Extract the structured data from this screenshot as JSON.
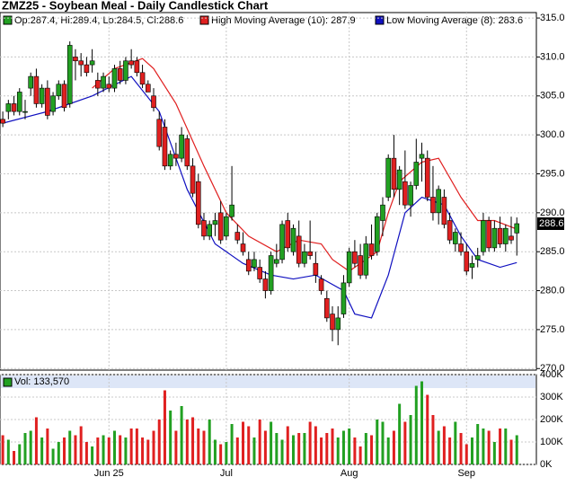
{
  "chart_data": {
    "type": "candlestick",
    "title": "ZMZ25 - Soybean Meal - Daily Candlestick Chart",
    "ohlc_label": "Op:287.4, Hi:289.4, Lo:284.5, Cl:288.6",
    "last_price_label": "288.6",
    "up_color": "#22a022",
    "down_color": "#e02020",
    "ylim": [
      269.8,
      315.7
    ],
    "yticks": [
      {
        "value": 270,
        "label": "270.0"
      },
      {
        "value": 275,
        "label": "275.0"
      },
      {
        "value": 280,
        "label": "280.0"
      },
      {
        "value": 285,
        "label": "285.0"
      },
      {
        "value": 290,
        "label": "290.0"
      },
      {
        "value": 295,
        "label": "295.0"
      },
      {
        "value": 300,
        "label": "300.0"
      },
      {
        "value": 305,
        "label": "305.0"
      },
      {
        "value": 310,
        "label": "310.0"
      },
      {
        "value": 315,
        "label": "315.0"
      }
    ],
    "xlim": [
      -0.5,
      95.5
    ],
    "xticks": [
      {
        "value": 19,
        "label": "Jun 25"
      },
      {
        "value": 40,
        "label": "Jul"
      },
      {
        "value": 62,
        "label": "Aug"
      },
      {
        "value": 83,
        "label": "Sep"
      }
    ],
    "grid": true,
    "candles": [
      [
        302,
        303,
        301,
        301.5
      ],
      [
        303,
        304.5,
        302,
        304
      ],
      [
        304,
        305,
        302.5,
        303
      ],
      [
        303,
        306,
        302.5,
        305.5
      ],
      [
        303,
        304.5,
        302,
        303
      ],
      [
        306,
        308,
        305,
        307.5
      ],
      [
        307.5,
        308.5,
        303.5,
        304
      ],
      [
        304,
        306.5,
        303.5,
        306
      ],
      [
        306,
        307,
        302,
        302.5
      ],
      [
        303,
        305.5,
        302.5,
        305
      ],
      [
        305,
        307,
        304.5,
        306.5
      ],
      [
        306.5,
        307,
        303,
        303.5
      ],
      [
        304,
        312,
        303.5,
        311.5
      ],
      [
        310,
        311,
        307,
        309.5
      ],
      [
        309.5,
        310.5,
        307.5,
        309
      ],
      [
        309,
        310,
        307.5,
        308
      ],
      [
        309,
        311,
        308,
        309.5
      ],
      [
        307,
        308,
        305,
        306
      ],
      [
        306,
        308,
        305.5,
        307.5
      ],
      [
        306.5,
        307.5,
        305.5,
        306
      ],
      [
        306,
        309,
        305.5,
        308.5
      ],
      [
        308.5,
        309.5,
        306.5,
        307
      ],
      [
        307,
        310,
        306.5,
        309.5
      ],
      [
        309.5,
        311,
        308.5,
        309
      ],
      [
        309.5,
        310,
        307.5,
        308
      ],
      [
        308,
        309,
        306,
        306.5
      ],
      [
        306.5,
        307,
        305.5,
        305.5
      ],
      [
        305,
        306,
        303,
        303.5
      ],
      [
        302,
        303,
        298,
        298.5
      ],
      [
        301,
        302,
        295.5,
        296
      ],
      [
        296,
        298,
        295.5,
        297.5
      ],
      [
        297.5,
        299,
        296,
        297
      ],
      [
        297,
        301,
        296.5,
        300
      ],
      [
        299.5,
        300,
        295.5,
        296
      ],
      [
        296,
        297,
        292,
        292.5
      ],
      [
        294,
        295,
        288,
        288.5
      ],
      [
        289,
        290,
        286.5,
        287
      ],
      [
        287,
        289,
        286.5,
        288.5
      ],
      [
        288.5,
        290,
        287,
        289
      ],
      [
        290,
        291.5,
        286,
        286.5
      ],
      [
        287,
        290,
        286.5,
        289.5
      ],
      [
        289.5,
        296,
        289,
        291
      ],
      [
        287.5,
        288.5,
        286,
        286.5
      ],
      [
        286,
        287.5,
        284.5,
        285
      ],
      [
        284,
        285,
        282,
        282.5
      ],
      [
        283,
        285,
        282.5,
        284
      ],
      [
        283,
        284,
        281,
        281.5
      ],
      [
        281.5,
        282.5,
        279,
        280
      ],
      [
        280,
        285,
        279.5,
        284.5
      ],
      [
        283.5,
        286,
        283,
        284
      ],
      [
        284,
        289,
        283.5,
        288.5
      ],
      [
        289,
        290,
        285,
        285.5
      ],
      [
        285,
        288.5,
        284.5,
        288
      ],
      [
        287,
        289,
        283,
        283.5
      ],
      [
        283.5,
        286,
        283,
        285
      ],
      [
        285,
        289,
        284,
        284.5
      ],
      [
        283.5,
        285,
        281,
        282
      ],
      [
        281.5,
        282,
        279.5,
        280
      ],
      [
        279,
        280,
        276,
        276.5
      ],
      [
        277,
        278,
        273.5,
        275
      ],
      [
        275,
        278,
        273,
        276.5
      ],
      [
        277,
        282,
        276.5,
        281
      ],
      [
        281,
        285.5,
        280.5,
        285
      ],
      [
        285,
        286.5,
        283,
        283.5
      ],
      [
        284.5,
        286,
        281.5,
        282
      ],
      [
        282,
        287,
        281.5,
        286
      ],
      [
        286,
        288.5,
        284,
        284.5
      ],
      [
        285,
        290,
        284.5,
        289.5
      ],
      [
        289,
        292,
        287,
        291
      ],
      [
        292,
        297.5,
        291.5,
        297
      ],
      [
        297,
        300,
        292,
        293
      ],
      [
        293,
        296,
        291,
        295.5
      ],
      [
        294,
        298,
        290.5,
        291
      ],
      [
        291,
        294,
        289.5,
        293.5
      ],
      [
        293.5,
        299.5,
        293,
        296.5
      ],
      [
        297,
        299,
        294,
        297.5
      ],
      [
        297,
        298,
        291.5,
        292
      ],
      [
        292,
        296,
        289,
        290
      ],
      [
        290,
        293.5,
        288.5,
        293
      ],
      [
        292,
        293,
        288,
        288.5
      ],
      [
        289,
        290,
        286,
        286.5
      ],
      [
        286,
        288,
        285,
        287.5
      ],
      [
        286,
        287.5,
        284.5,
        285
      ],
      [
        285,
        286,
        282,
        282.5
      ],
      [
        283,
        284.5,
        281.5,
        283.5
      ],
      [
        284,
        285.5,
        283,
        284.5
      ],
      [
        285,
        290,
        284.5,
        289
      ],
      [
        289,
        289.5,
        285,
        285.5
      ],
      [
        285.5,
        289,
        285,
        288
      ],
      [
        288,
        289.5,
        285.5,
        286
      ],
      [
        286,
        288.5,
        285,
        288
      ],
      [
        287,
        289.5,
        286,
        286.5
      ],
      [
        287.4,
        289.4,
        284.5,
        288.6
      ]
    ],
    "series": [
      {
        "name": "High Moving Average (10): 287.9",
        "color": "#e02020",
        "x": [
          16,
          20,
          25,
          27,
          31,
          36,
          40,
          44,
          49,
          53,
          57,
          59,
          62,
          65,
          67,
          69,
          71,
          75,
          78,
          82,
          85,
          88,
          92
        ],
        "values": [
          306,
          308.5,
          309.8,
          308.5,
          304,
          296,
          290,
          287,
          285,
          286.5,
          286,
          284,
          282.5,
          284,
          285,
          290,
          294,
          296.5,
          297,
          292,
          289,
          289,
          287.9
        ]
      },
      {
        "name": "Low Moving Average (8): 283.6",
        "color": "#1010c0",
        "x": [
          0,
          8,
          16,
          23,
          28,
          33,
          38,
          43,
          48,
          52,
          56,
          61,
          63,
          66,
          69,
          72,
          75,
          79,
          82,
          85,
          89,
          92
        ],
        "values": [
          301.5,
          303,
          305,
          307.5,
          303,
          293,
          286,
          283.5,
          282,
          281.5,
          282,
          280,
          277,
          276.5,
          282,
          290,
          292,
          291,
          287,
          284,
          283,
          283.6
        ]
      }
    ],
    "volume": {
      "label": "Vol: 133,570",
      "ylim": [
        0,
        400
      ],
      "yticks": [
        {
          "value": 0,
          "label": "0K"
        },
        {
          "value": 100,
          "label": "100K"
        },
        {
          "value": 200,
          "label": "200K"
        },
        {
          "value": 300,
          "label": "300K"
        },
        {
          "value": 400,
          "label": "400K"
        }
      ],
      "values": [
        130,
        110,
        60,
        90,
        140,
        150,
        210,
        120,
        160,
        70,
        100,
        120,
        150,
        130,
        170,
        100,
        80,
        120,
        130,
        120,
        150,
        130,
        120,
        160,
        160,
        120,
        110,
        150,
        200,
        330,
        240,
        150,
        260,
        200,
        210,
        160,
        150,
        200,
        110,
        90,
        100,
        180,
        120,
        190,
        170,
        120,
        200,
        150,
        190,
        140,
        110,
        170,
        130,
        140,
        140,
        190,
        170,
        120,
        140,
        160,
        120,
        150,
        160,
        120,
        80,
        140,
        130,
        200,
        190,
        120,
        150,
        270,
        190,
        220,
        350,
        370,
        310,
        220,
        150,
        170,
        120,
        190,
        140,
        90,
        120,
        180,
        160,
        150,
        100,
        160,
        160,
        110,
        130
      ]
    }
  }
}
